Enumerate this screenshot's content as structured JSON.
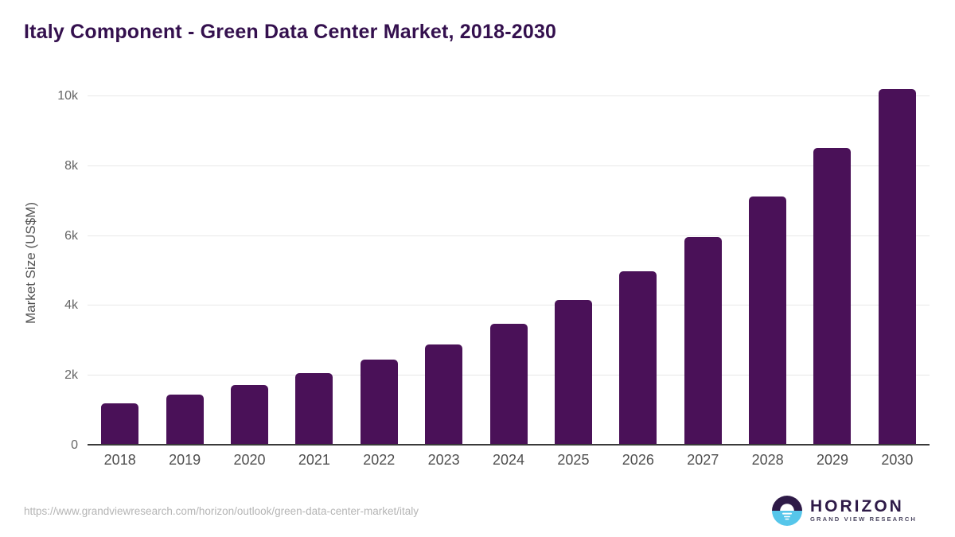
{
  "title": "Italy Component - Green Data Center Market, 2018-2030",
  "chart_data": {
    "type": "bar",
    "title": "Italy Component - Green Data Center Market, 2018-2030",
    "categories": [
      "2018",
      "2019",
      "2020",
      "2021",
      "2022",
      "2023",
      "2024",
      "2025",
      "2026",
      "2027",
      "2028",
      "2029",
      "2030"
    ],
    "values": [
      1210,
      1450,
      1730,
      2070,
      2460,
      2900,
      3490,
      4180,
      4980,
      5960,
      7120,
      8510,
      10200
    ],
    "xlabel": "",
    "ylabel": "Market Size (US$M)",
    "ylim": [
      0,
      10480
    ],
    "yticks": [
      {
        "value": 0,
        "label": "0"
      },
      {
        "value": 2000,
        "label": "2k"
      },
      {
        "value": 4000,
        "label": "4k"
      },
      {
        "value": 6000,
        "label": "6k"
      },
      {
        "value": 8000,
        "label": "8k"
      },
      {
        "value": 10000,
        "label": "10k"
      }
    ],
    "grid": true,
    "legend": false,
    "bar_color": "#4a1158"
  },
  "colors": {
    "title": "#34104e",
    "bar": "#4a1158",
    "axis_line": "#3a3a3a",
    "gridline": "#e8e8e8",
    "tick_label": "#666666",
    "url_text": "#b5b5b5",
    "logo_purple": "#2e1a47",
    "logo_blue": "#56c6ea"
  },
  "footer": {
    "source_url": "https://www.grandviewresearch.com/horizon/outlook/green-data-center-market/italy",
    "logo": {
      "brand": "HORIZON",
      "sub_brand": "GRAND VIEW RESEARCH",
      "icon": "horizon-sun-icon"
    }
  }
}
